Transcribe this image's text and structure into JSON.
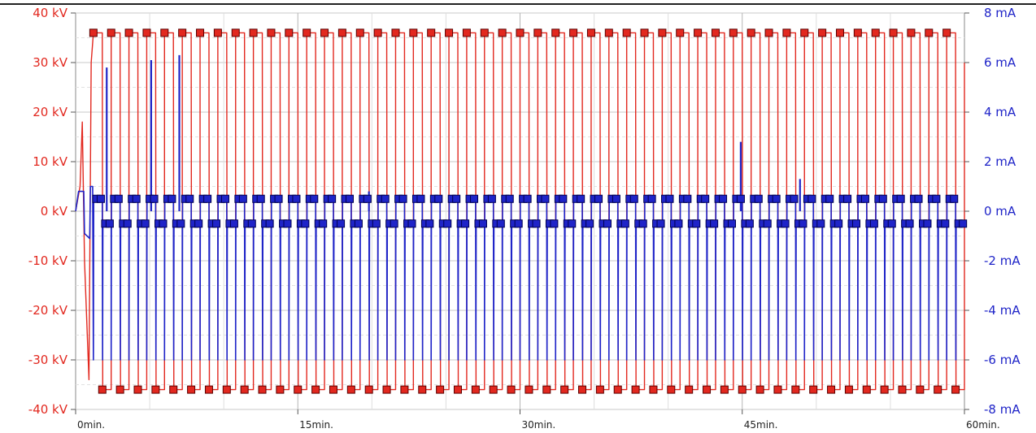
{
  "chart_data": {
    "type": "line",
    "x_range": [
      0,
      60
    ],
    "x_ticks": [
      {
        "value": 0,
        "label": "0min."
      },
      {
        "value": 15,
        "label": "15min."
      },
      {
        "value": 30,
        "label": "30min."
      },
      {
        "value": 45,
        "label": "45min."
      },
      {
        "value": 60,
        "label": "60min."
      }
    ],
    "left_axis": {
      "range": [
        -40,
        40
      ],
      "ticks": [
        {
          "value": 40,
          "label": "40 kV"
        },
        {
          "value": 30,
          "label": "30 kV"
        },
        {
          "value": 20,
          "label": "20 kV"
        },
        {
          "value": 10,
          "label": "10 kV"
        },
        {
          "value": 0,
          "label": "0 kV"
        },
        {
          "value": -10,
          "label": "-10 kV"
        },
        {
          "value": -20,
          "label": "-20 kV"
        },
        {
          "value": -30,
          "label": "-30 kV"
        },
        {
          "value": -40,
          "label": "-40 kV"
        }
      ]
    },
    "right_axis": {
      "range": [
        -8,
        8
      ],
      "ticks": [
        {
          "value": 8,
          "label": "8 mA"
        },
        {
          "value": 6,
          "label": "6 mA"
        },
        {
          "value": 4,
          "label": "4 mA"
        },
        {
          "value": 2,
          "label": "2 mA"
        },
        {
          "value": 0,
          "label": "0 mA"
        },
        {
          "value": -2,
          "label": "-2 mA"
        },
        {
          "value": -4,
          "label": "-4 mA"
        },
        {
          "value": -6,
          "label": "-6 mA"
        },
        {
          "value": -8,
          "label": "-8 mA"
        }
      ]
    },
    "grid": true,
    "series": [
      {
        "axis": "left",
        "color": "#e2281f",
        "marker_color": "#e2281f",
        "waveform": "square",
        "high": 36,
        "low": -36,
        "start_min": 1.2,
        "period_min": 1.2,
        "cycles": 49
      },
      {
        "axis": "right",
        "color": "#1f24c8",
        "marker_color": "#1f24c8",
        "waveform": "pulsed",
        "high_level": 0.5,
        "low_level": -0.5,
        "pulse_depth": -6,
        "start_min": 1.2,
        "period_min": 1.2,
        "cycles": 49,
        "spikes": [
          {
            "x": 2.1,
            "y": 5.8
          },
          {
            "x": 5.1,
            "y": 6.1
          },
          {
            "x": 7.0,
            "y": 6.3
          },
          {
            "x": 19.8,
            "y": 0.8
          },
          {
            "x": 44.9,
            "y": 2.8
          },
          {
            "x": 48.9,
            "y": 1.3
          }
        ]
      }
    ]
  }
}
